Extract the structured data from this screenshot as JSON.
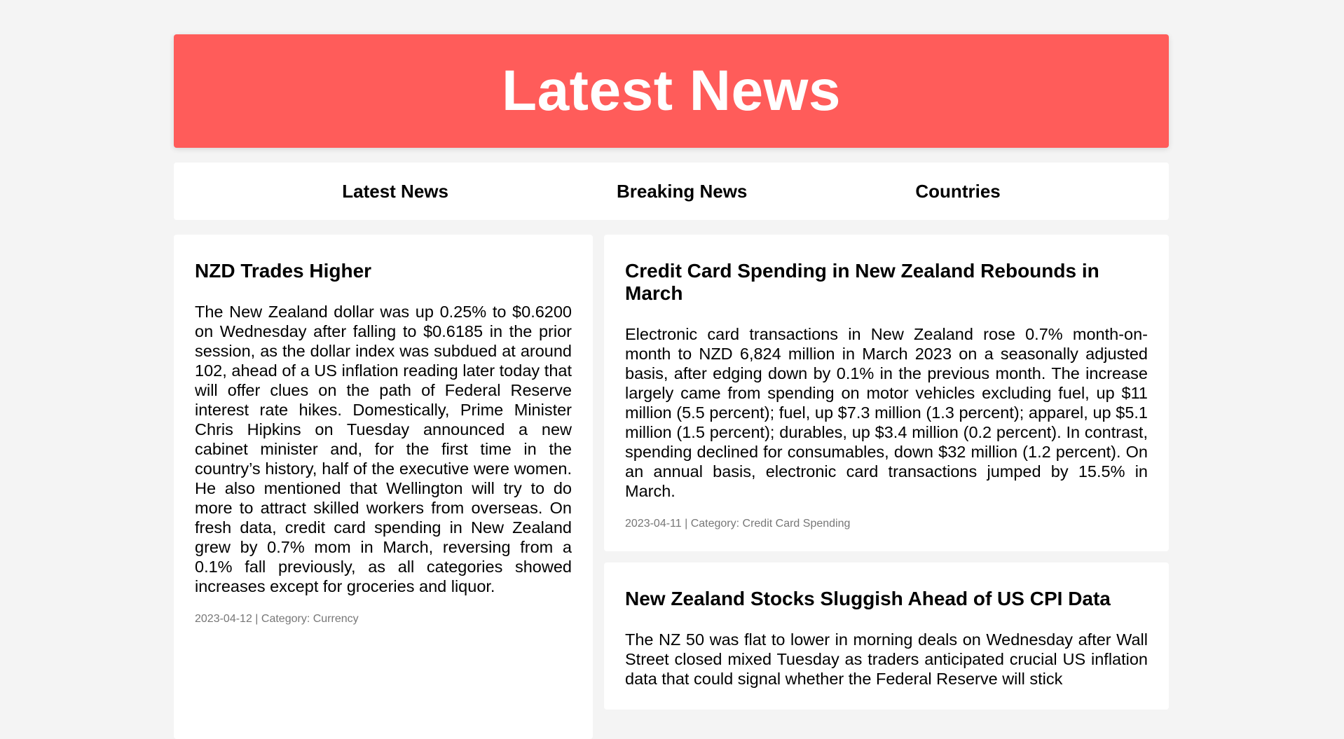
{
  "header": {
    "title": "Latest News"
  },
  "nav": {
    "items": [
      {
        "label": "Latest News"
      },
      {
        "label": "Breaking News"
      },
      {
        "label": "Countries"
      }
    ]
  },
  "articles": [
    {
      "title": "NZD Trades Higher",
      "body": "The New Zealand dollar was up 0.25% to $0.6200 on Wednesday after falling to $0.6185 in the prior session, as the dollar index was subdued at around 102, ahead of a US inflation reading later today that will offer clues on the path of Federal Reserve interest rate hikes. Domestically, Prime Minister Chris Hipkins on Tuesday announced a new cabinet minister and, for the first time in the country’s history, half of the executive were women. He also mentioned that Wellington will try to do more to attract skilled workers from overseas. On fresh data, credit card spending in New Zealand grew by 0.7% mom in March, reversing from a 0.1% fall previously, as all categories showed increases except for groceries and liquor.",
      "meta": "2023-04-12 | Category: Currency"
    },
    {
      "title": "Credit Card Spending in New Zealand Rebounds in March",
      "body": "Electronic card transactions in New Zealand rose 0.7% month-on-month to NZD 6,824 million in March 2023 on a seasonally adjusted basis, after edging down by 0.1% in the previous month. The increase largely came from spending on motor vehicles excluding fuel, up $11 million (5.5 percent); fuel, up $7.3 million (1.3 percent); apparel, up $5.1 million (1.5 percent); durables, up $3.4 million (0.2 percent). In contrast, spending declined for consumables, down $32 million (1.2 percent). On an annual basis, electronic card transactions jumped by 15.5% in March.",
      "meta": "2023-04-11 | Category: Credit Card Spending"
    },
    {
      "title": "New Zealand Stocks Sluggish Ahead of US CPI Data",
      "body": "The NZ 50 was flat to lower in morning deals on Wednesday after Wall Street closed mixed Tuesday as traders anticipated crucial US inflation data that could signal whether the Federal Reserve will stick"
    }
  ],
  "colors": {
    "banner": "#ff5c5a",
    "background": "#f4f4f4",
    "meta_text": "#777777"
  }
}
